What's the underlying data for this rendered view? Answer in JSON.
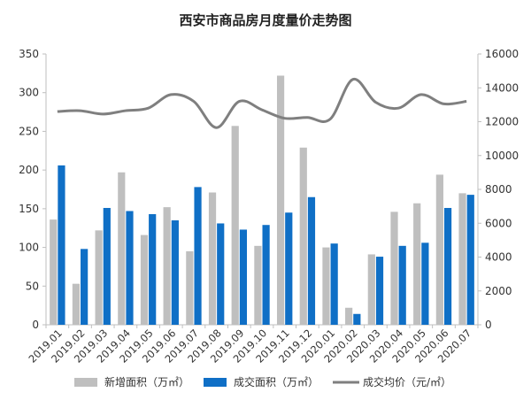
{
  "chart_data": {
    "type": "bar",
    "title": "西安市商品房月度量价走势图",
    "categories": [
      "2019.01",
      "2019.02",
      "2019.03",
      "2019.04",
      "2019.05",
      "2019.06",
      "2019.07",
      "2019.08",
      "2019.09",
      "2019.10",
      "2019.11",
      "2019.12",
      "2020.01",
      "2020.02",
      "2020.03",
      "2020.04",
      "2020.05",
      "2020.06",
      "2020.07"
    ],
    "series": [
      {
        "name": "新增面积（万㎡）",
        "type": "bar",
        "axis": "left",
        "color": "#bfbfbf",
        "values": [
          136,
          53,
          122,
          197,
          116,
          152,
          95,
          171,
          257,
          102,
          322,
          229,
          100,
          22,
          91,
          146,
          157,
          194,
          170
        ]
      },
      {
        "name": "成交面积（万㎡）",
        "type": "bar",
        "axis": "left",
        "color": "#0f6fc6",
        "values": [
          206,
          98,
          151,
          147,
          143,
          135,
          178,
          131,
          123,
          129,
          145,
          165,
          105,
          14,
          88,
          102,
          106,
          151,
          168
        ]
      },
      {
        "name": "成交均价（元/㎡）",
        "type": "line",
        "axis": "right",
        "color": "#7f7f7f",
        "values": [
          12600,
          12650,
          12450,
          12650,
          12800,
          13600,
          13200,
          11650,
          13200,
          12700,
          12200,
          12250,
          12150,
          14500,
          13150,
          12800,
          13600,
          13050,
          13200
        ]
      }
    ],
    "ylim_left": [
      0,
      350
    ],
    "yticks_left": [
      "0",
      "50",
      "100",
      "150",
      "200",
      "250",
      "300",
      "350"
    ],
    "ylim_right": [
      0,
      16000
    ],
    "yticks_right": [
      "0",
      "2000",
      "4000",
      "6000",
      "8000",
      "10000",
      "12000",
      "14000",
      "16000"
    ],
    "legend_position": "bottom",
    "grid": false
  }
}
